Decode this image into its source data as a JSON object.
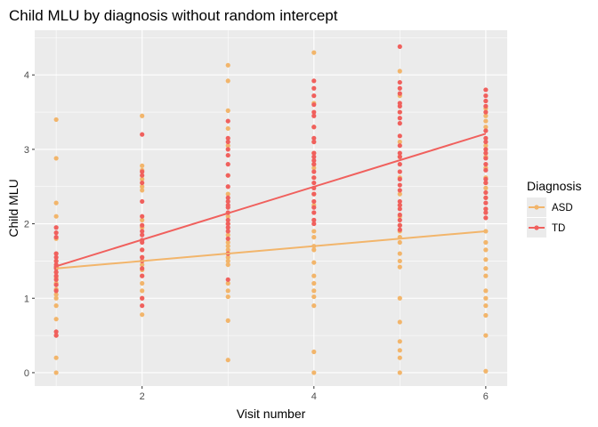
{
  "chart_data": {
    "type": "scatter",
    "title": "Child MLU by diagnosis without random intercept",
    "xlabel": "Visit number",
    "ylabel": "Child MLU",
    "xlim": [
      0.75,
      6.25
    ],
    "ylim": [
      -0.18,
      4.6
    ],
    "x_ticks": [
      2,
      4,
      6
    ],
    "y_ticks": [
      0,
      1,
      2,
      3,
      4
    ],
    "grid": true,
    "legend": {
      "title": "Diagnosis",
      "position": "right"
    },
    "series": [
      {
        "name": "ASD",
        "color": "#F2B56B",
        "points": [
          [
            1,
            3.4
          ],
          [
            1,
            2.88
          ],
          [
            1,
            2.28
          ],
          [
            1,
            2.1
          ],
          [
            1,
            1.8
          ],
          [
            1,
            1.6
          ],
          [
            1,
            1.5
          ],
          [
            1,
            1.42
          ],
          [
            1,
            1.35
          ],
          [
            1,
            1.28
          ],
          [
            1,
            1.2
          ],
          [
            1,
            1.12
          ],
          [
            1,
            1.05
          ],
          [
            1,
            1.0
          ],
          [
            1,
            0.9
          ],
          [
            1,
            0.72
          ],
          [
            1,
            0.5
          ],
          [
            1,
            0.2
          ],
          [
            1,
            0.0
          ],
          [
            2,
            3.45
          ],
          [
            2,
            2.78
          ],
          [
            2,
            2.72
          ],
          [
            2,
            2.6
          ],
          [
            2,
            2.5
          ],
          [
            2,
            2.45
          ],
          [
            2,
            2.05
          ],
          [
            2,
            1.95
          ],
          [
            2,
            1.65
          ],
          [
            2,
            1.55
          ],
          [
            2,
            1.45
          ],
          [
            2,
            1.38
          ],
          [
            2,
            1.3
          ],
          [
            2,
            1.2
          ],
          [
            2,
            1.1
          ],
          [
            2,
            1.0
          ],
          [
            2,
            0.78
          ],
          [
            3,
            4.13
          ],
          [
            3,
            3.92
          ],
          [
            3,
            3.52
          ],
          [
            3,
            3.28
          ],
          [
            3,
            3.05
          ],
          [
            3,
            2.65
          ],
          [
            3,
            2.4
          ],
          [
            3,
            2.1
          ],
          [
            3,
            2.0
          ],
          [
            3,
            1.85
          ],
          [
            3,
            1.75
          ],
          [
            3,
            1.7
          ],
          [
            3,
            1.65
          ],
          [
            3,
            1.6
          ],
          [
            3,
            1.55
          ],
          [
            3,
            1.5
          ],
          [
            3,
            1.45
          ],
          [
            3,
            1.2
          ],
          [
            3,
            1.1
          ],
          [
            3,
            1.02
          ],
          [
            3,
            0.7
          ],
          [
            3,
            0.17
          ],
          [
            4,
            4.3
          ],
          [
            4,
            3.62
          ],
          [
            4,
            3.3
          ],
          [
            4,
            3.1
          ],
          [
            4,
            2.95
          ],
          [
            4,
            2.8
          ],
          [
            4,
            2.75
          ],
          [
            4,
            2.62
          ],
          [
            4,
            2.4
          ],
          [
            4,
            2.25
          ],
          [
            4,
            1.9
          ],
          [
            4,
            1.82
          ],
          [
            4,
            1.7
          ],
          [
            4,
            1.65
          ],
          [
            4,
            1.48
          ],
          [
            4,
            1.3
          ],
          [
            4,
            1.2
          ],
          [
            4,
            1.1
          ],
          [
            4,
            1.02
          ],
          [
            4,
            0.9
          ],
          [
            4,
            0.28
          ],
          [
            4,
            0.0
          ],
          [
            5,
            4.05
          ],
          [
            5,
            3.72
          ],
          [
            5,
            3.5
          ],
          [
            5,
            3.1
          ],
          [
            5,
            2.9
          ],
          [
            5,
            2.62
          ],
          [
            5,
            2.4
          ],
          [
            5,
            2.25
          ],
          [
            5,
            2.1
          ],
          [
            5,
            1.98
          ],
          [
            5,
            1.9
          ],
          [
            5,
            1.82
          ],
          [
            5,
            1.75
          ],
          [
            5,
            1.6
          ],
          [
            5,
            1.5
          ],
          [
            5,
            1.42
          ],
          [
            5,
            1.0
          ],
          [
            5,
            0.68
          ],
          [
            5,
            0.42
          ],
          [
            5,
            0.3
          ],
          [
            5,
            0.2
          ],
          [
            5,
            0.0
          ],
          [
            6,
            3.55
          ],
          [
            6,
            3.45
          ],
          [
            6,
            3.38
          ],
          [
            6,
            3.3
          ],
          [
            6,
            3.05
          ],
          [
            6,
            2.9
          ],
          [
            6,
            2.75
          ],
          [
            6,
            2.62
          ],
          [
            6,
            2.55
          ],
          [
            6,
            2.48
          ],
          [
            6,
            2.35
          ],
          [
            6,
            2.2
          ],
          [
            6,
            1.9
          ],
          [
            6,
            1.75
          ],
          [
            6,
            1.65
          ],
          [
            6,
            1.52
          ],
          [
            6,
            1.4
          ],
          [
            6,
            1.3
          ],
          [
            6,
            1.1
          ],
          [
            6,
            1.0
          ],
          [
            6,
            0.9
          ],
          [
            6,
            0.77
          ],
          [
            6,
            0.5
          ],
          [
            6,
            0.02
          ]
        ],
        "fit_line": {
          "x": [
            1,
            6
          ],
          "y": [
            1.4,
            1.9
          ]
        }
      },
      {
        "name": "TD",
        "color": "#F0605D",
        "points": [
          [
            1,
            1.95
          ],
          [
            1,
            1.88
          ],
          [
            1,
            1.82
          ],
          [
            1,
            1.6
          ],
          [
            1,
            1.55
          ],
          [
            1,
            1.5
          ],
          [
            1,
            1.45
          ],
          [
            1,
            1.42
          ],
          [
            1,
            1.4
          ],
          [
            1,
            1.35
          ],
          [
            1,
            1.3
          ],
          [
            1,
            1.25
          ],
          [
            1,
            1.18
          ],
          [
            1,
            1.1
          ],
          [
            1,
            0.55
          ],
          [
            1,
            0.5
          ],
          [
            2,
            3.2
          ],
          [
            2,
            2.7
          ],
          [
            2,
            2.65
          ],
          [
            2,
            2.55
          ],
          [
            2,
            2.3
          ],
          [
            2,
            2.1
          ],
          [
            2,
            1.98
          ],
          [
            2,
            1.9
          ],
          [
            2,
            1.85
          ],
          [
            2,
            1.78
          ],
          [
            2,
            1.75
          ],
          [
            2,
            1.65
          ],
          [
            2,
            1.55
          ],
          [
            2,
            1.5
          ],
          [
            2,
            1.4
          ],
          [
            2,
            1.3
          ],
          [
            2,
            1.0
          ],
          [
            2,
            0.9
          ],
          [
            3,
            3.38
          ],
          [
            3,
            3.15
          ],
          [
            3,
            3.1
          ],
          [
            3,
            3.0
          ],
          [
            3,
            2.92
          ],
          [
            3,
            2.8
          ],
          [
            3,
            2.65
          ],
          [
            3,
            2.5
          ],
          [
            3,
            2.35
          ],
          [
            3,
            2.3
          ],
          [
            3,
            2.25
          ],
          [
            3,
            2.22
          ],
          [
            3,
            2.15
          ],
          [
            3,
            2.05
          ],
          [
            3,
            2.0
          ],
          [
            3,
            1.95
          ],
          [
            3,
            1.9
          ],
          [
            3,
            1.8
          ],
          [
            3,
            1.6
          ],
          [
            3,
            1.25
          ],
          [
            4,
            3.92
          ],
          [
            4,
            3.82
          ],
          [
            4,
            3.72
          ],
          [
            4,
            3.6
          ],
          [
            4,
            3.5
          ],
          [
            4,
            3.45
          ],
          [
            4,
            3.3
          ],
          [
            4,
            3.15
          ],
          [
            4,
            3.1
          ],
          [
            4,
            2.95
          ],
          [
            4,
            2.9
          ],
          [
            4,
            2.85
          ],
          [
            4,
            2.8
          ],
          [
            4,
            2.7
          ],
          [
            4,
            2.62
          ],
          [
            4,
            2.55
          ],
          [
            4,
            2.48
          ],
          [
            4,
            2.4
          ],
          [
            4,
            2.3
          ],
          [
            4,
            2.22
          ],
          [
            4,
            2.15
          ],
          [
            4,
            2.05
          ],
          [
            4,
            2.0
          ],
          [
            5,
            4.38
          ],
          [
            5,
            3.9
          ],
          [
            5,
            3.82
          ],
          [
            5,
            3.75
          ],
          [
            5,
            3.62
          ],
          [
            5,
            3.58
          ],
          [
            5,
            3.5
          ],
          [
            5,
            3.42
          ],
          [
            5,
            3.35
          ],
          [
            5,
            3.18
          ],
          [
            5,
            3.05
          ],
          [
            5,
            2.95
          ],
          [
            5,
            2.9
          ],
          [
            5,
            2.8
          ],
          [
            5,
            2.7
          ],
          [
            5,
            2.6
          ],
          [
            5,
            2.52
          ],
          [
            5,
            2.45
          ],
          [
            5,
            2.3
          ],
          [
            5,
            2.25
          ],
          [
            5,
            2.2
          ],
          [
            5,
            2.12
          ],
          [
            5,
            2.05
          ],
          [
            5,
            1.98
          ],
          [
            5,
            1.92
          ],
          [
            6,
            3.8
          ],
          [
            6,
            3.72
          ],
          [
            6,
            3.65
          ],
          [
            6,
            3.58
          ],
          [
            6,
            3.5
          ],
          [
            6,
            3.25
          ],
          [
            6,
            3.15
          ],
          [
            6,
            3.1
          ],
          [
            6,
            3.0
          ],
          [
            6,
            2.95
          ],
          [
            6,
            2.88
          ],
          [
            6,
            2.8
          ],
          [
            6,
            2.72
          ],
          [
            6,
            2.6
          ],
          [
            6,
            2.55
          ],
          [
            6,
            2.42
          ],
          [
            6,
            2.35
          ],
          [
            6,
            2.28
          ],
          [
            6,
            2.2
          ],
          [
            6,
            2.15
          ],
          [
            6,
            2.08
          ]
        ],
        "fit_line": {
          "x": [
            1,
            6
          ],
          "y": [
            1.43,
            3.21
          ]
        }
      }
    ]
  }
}
